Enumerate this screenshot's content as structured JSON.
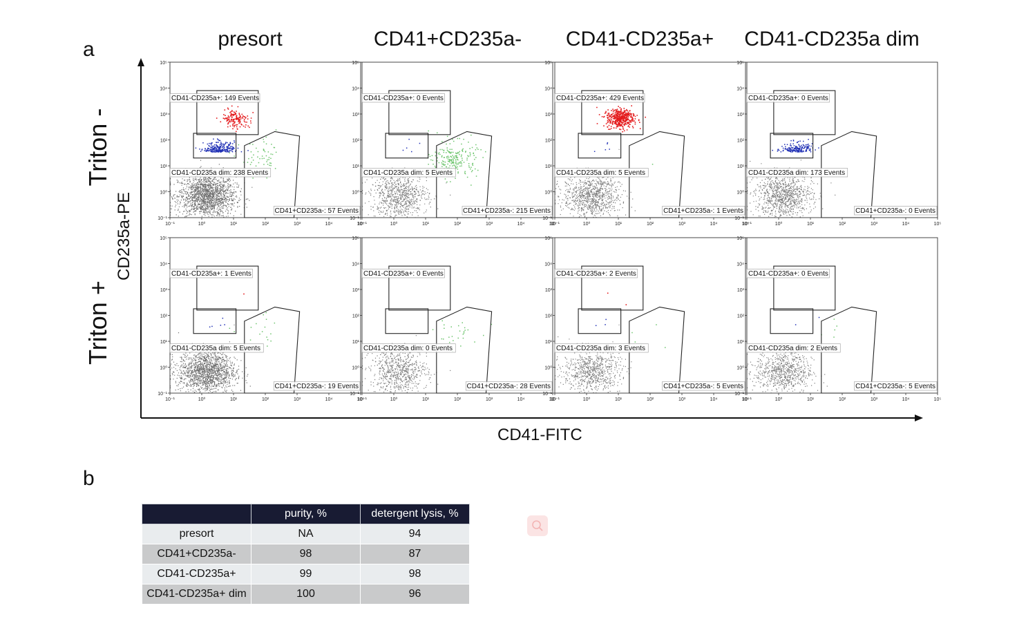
{
  "panel_a_label": "a",
  "panel_b_label": "b",
  "columns": [
    "presort",
    "CD41+CD235a-",
    "CD41-CD235a+",
    "CD41-CD235a dim"
  ],
  "rows": [
    "Triton -",
    "Triton +"
  ],
  "x_axis_title": "CD41-FITC",
  "y_axis_title": "CD235a-PE",
  "tick_labels": [
    "10⁻¹",
    "10⁰",
    "10¹",
    "10²",
    "10³",
    "10⁴",
    "10⁵"
  ],
  "colors": {
    "gray": "#777777",
    "red": "#e41a1c",
    "blue": "#1f2fb5",
    "green": "#6cc46c",
    "table_header": "#181b33"
  },
  "chart_data": {
    "type": "scatter",
    "x_scale": "log",
    "y_scale": "log",
    "xlim": [
      0.1,
      100000
    ],
    "ylim": [
      0.1,
      100000
    ],
    "grid": false,
    "panels": [
      {
        "column": "presort",
        "row": "Triton -",
        "density": 1.0,
        "gates": {
          "pos": "CD41-CD235a+: 149 Events",
          "dim": "CD41-CD235a dim: 238 Events",
          "cd41": "CD41+CD235a-: 57 Events"
        },
        "counts": {
          "pos": 149,
          "dim": 238,
          "cd41": 57
        }
      },
      {
        "column": "CD41+CD235a-",
        "row": "Triton -",
        "density": 0.45,
        "gates": {
          "pos": "CD41-CD235a+: 0 Events",
          "dim": "CD41-CD235a dim: 5 Events",
          "cd41": "CD41+CD235a-: 215 Events"
        },
        "counts": {
          "pos": 0,
          "dim": 5,
          "cd41": 215
        }
      },
      {
        "column": "CD41-CD235a+",
        "row": "Triton -",
        "density": 0.55,
        "gates": {
          "pos": "CD41-CD235a+: 429 Events",
          "dim": "CD41-CD235a dim: 5 Events",
          "cd41": "CD41+CD235a-: 1 Events"
        },
        "counts": {
          "pos": 429,
          "dim": 5,
          "cd41": 1
        }
      },
      {
        "column": "CD41-CD235a dim",
        "row": "Triton -",
        "density": 0.55,
        "gates": {
          "pos": "CD41-CD235a+: 0 Events",
          "dim": "CD41-CD235a dim: 173 Events",
          "cd41": "CD41+CD235a-: 0 Events"
        },
        "counts": {
          "pos": 0,
          "dim": 173,
          "cd41": 0
        }
      },
      {
        "column": "presort",
        "row": "Triton +",
        "density": 1.0,
        "gates": {
          "pos": "CD41-CD235a+: 1 Events",
          "dim": "CD41-CD235a dim: 5 Events",
          "cd41": "CD41+CD235a-: 19 Events"
        },
        "counts": {
          "pos": 1,
          "dim": 5,
          "cd41": 19
        }
      },
      {
        "column": "CD41+CD235a-",
        "row": "Triton +",
        "density": 0.45,
        "gates": {
          "pos": "CD41-CD235a+: 0 Events",
          "dim": "CD41-CD235a dim: 0 Events",
          "cd41": "CD41+CD235a-: 28 Events"
        },
        "counts": {
          "pos": 0,
          "dim": 0,
          "cd41": 28
        }
      },
      {
        "column": "CD41-CD235a+",
        "row": "Triton +",
        "density": 0.5,
        "gates": {
          "pos": "CD41-CD235a+: 2 Events",
          "dim": "CD41-CD235a dim: 3 Events",
          "cd41": "CD41+CD235a-: 5 Events"
        },
        "counts": {
          "pos": 2,
          "dim": 3,
          "cd41": 5
        }
      },
      {
        "column": "CD41-CD235a dim",
        "row": "Triton +",
        "density": 0.5,
        "gates": {
          "pos": "CD41-CD235a+: 0 Events",
          "dim": "CD41-CD235a dim: 2 Events",
          "cd41": "CD41+CD235a-: 5 Events"
        },
        "counts": {
          "pos": 0,
          "dim": 2,
          "cd41": 5
        }
      }
    ]
  },
  "table": {
    "headers": [
      "",
      "purity, %",
      "detergent lysis, %"
    ],
    "rows": [
      [
        "presort",
        "NA",
        "94"
      ],
      [
        "CD41+CD235a-",
        "98",
        "87"
      ],
      [
        "CD41-CD235a+",
        "99",
        "98"
      ],
      [
        "CD41-CD235a+ dim",
        "100",
        "96"
      ]
    ]
  }
}
